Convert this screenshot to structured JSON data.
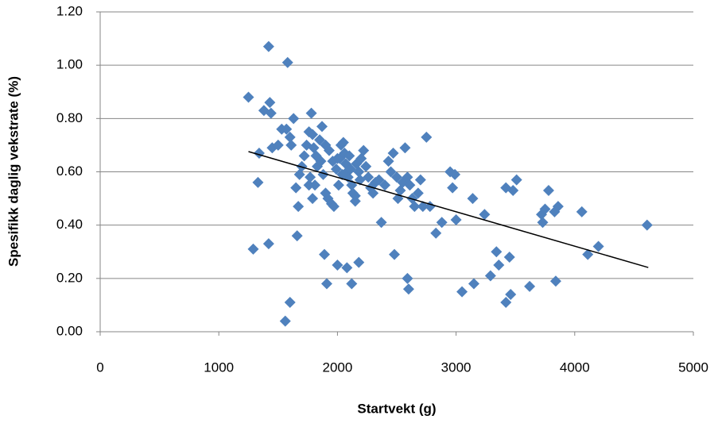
{
  "chart_data": {
    "type": "scatter",
    "xlabel": "Startvekt (g)",
    "ylabel": "Spesifikk daglig  vekstrate (%)",
    "xlim": [
      0,
      5000
    ],
    "xticks": [
      0,
      1000,
      2000,
      3000,
      4000,
      5000
    ],
    "ylim": [
      0,
      1.2
    ],
    "yticks": [
      {
        "value": 0,
        "label": "0.00"
      },
      {
        "value": 0.2,
        "label": "0.20"
      },
      {
        "value": 0.4,
        "label": "0.40"
      },
      {
        "value": 0.6,
        "label": "0.60"
      },
      {
        "value": 0.8,
        "label": "0.80"
      },
      {
        "value": 1.0,
        "label": "1.00"
      },
      {
        "value": 1.2,
        "label": "1.20"
      }
    ],
    "grid": true,
    "series": [
      {
        "color": "#4f81bd",
        "x": [
          1250,
          1420,
          1580,
          1430,
          1380,
          1440,
          1340,
          1450,
          1500,
          1530,
          1570,
          1600,
          1610,
          1630,
          1330,
          1290,
          1420,
          1650,
          1670,
          1680,
          1660,
          1600,
          1560,
          1700,
          1720,
          1740,
          1760,
          1780,
          1790,
          1800,
          1820,
          1830,
          1760,
          1770,
          1790,
          1810,
          1850,
          1870,
          1860,
          1880,
          1900,
          1920,
          1950,
          1970,
          1930,
          1960,
          1990,
          2010,
          2020,
          2030,
          2050,
          2060,
          2070,
          2080,
          2090,
          2100,
          2110,
          2120,
          2130,
          2150,
          2160,
          2180,
          2190,
          2200,
          2220,
          2240,
          2260,
          2280,
          2300,
          2320,
          2350,
          2370,
          2400,
          2430,
          2450,
          2470,
          2500,
          2510,
          2530,
          2550,
          2570,
          2590,
          2610,
          2630,
          2650,
          2680,
          2700,
          2720,
          2750,
          2780,
          2830,
          2880,
          2950,
          2970,
          2990,
          3000,
          3050,
          3140,
          3150,
          3240,
          3290,
          3340,
          3360,
          3420,
          3420,
          3450,
          3460,
          3480,
          3510,
          3620,
          3720,
          3730,
          3750,
          3780,
          3830,
          3840,
          3860,
          4060,
          4110,
          4200,
          4610,
          1890,
          1910,
          2000,
          2080,
          2120,
          2180,
          2480,
          2590,
          2600,
          2000,
          2040,
          2150,
          1900
        ],
        "y": [
          0.88,
          1.07,
          1.01,
          0.86,
          0.83,
          0.82,
          0.67,
          0.69,
          0.7,
          0.76,
          0.76,
          0.73,
          0.7,
          0.8,
          0.56,
          0.31,
          0.33,
          0.54,
          0.47,
          0.59,
          0.36,
          0.11,
          0.04,
          0.62,
          0.66,
          0.7,
          0.75,
          0.82,
          0.74,
          0.69,
          0.66,
          0.62,
          0.55,
          0.58,
          0.5,
          0.55,
          0.72,
          0.77,
          0.64,
          0.59,
          0.52,
          0.5,
          0.48,
          0.47,
          0.68,
          0.64,
          0.61,
          0.55,
          0.65,
          0.7,
          0.71,
          0.67,
          0.63,
          0.6,
          0.58,
          0.66,
          0.61,
          0.55,
          0.52,
          0.49,
          0.63,
          0.6,
          0.57,
          0.65,
          0.68,
          0.62,
          0.58,
          0.54,
          0.52,
          0.56,
          0.57,
          0.41,
          0.55,
          0.64,
          0.6,
          0.67,
          0.58,
          0.5,
          0.53,
          0.56,
          0.69,
          0.58,
          0.55,
          0.5,
          0.47,
          0.52,
          0.57,
          0.47,
          0.73,
          0.47,
          0.37,
          0.41,
          0.6,
          0.54,
          0.59,
          0.42,
          0.15,
          0.5,
          0.18,
          0.44,
          0.21,
          0.3,
          0.25,
          0.11,
          0.54,
          0.28,
          0.14,
          0.53,
          0.57,
          0.17,
          0.44,
          0.41,
          0.46,
          0.53,
          0.45,
          0.19,
          0.47,
          0.45,
          0.29,
          0.32,
          0.4,
          0.29,
          0.18,
          0.25,
          0.24,
          0.18,
          0.26,
          0.29,
          0.2,
          0.16,
          0.65,
          0.59,
          0.51,
          0.7
        ]
      }
    ],
    "trendline": {
      "color": "#000000",
      "x": [
        1250,
        4620
      ],
      "y": [
        0.676,
        0.241
      ]
    }
  }
}
